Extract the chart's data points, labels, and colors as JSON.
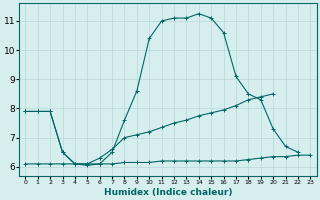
{
  "xlabel": "Humidex (Indice chaleur)",
  "bg_color": "#d7eeee",
  "line_color": "#006666",
  "grid_color": "#b8d8d8",
  "xlim": [
    -0.5,
    23.5
  ],
  "ylim": [
    5.7,
    11.6
  ],
  "yticks": [
    6,
    7,
    8,
    9,
    10,
    11
  ],
  "xticks": [
    0,
    1,
    2,
    3,
    4,
    5,
    6,
    7,
    8,
    9,
    10,
    11,
    12,
    13,
    14,
    15,
    16,
    17,
    18,
    19,
    20,
    21,
    22,
    23
  ],
  "series1_x": [
    0,
    1,
    2,
    3,
    4,
    5,
    6,
    7,
    8,
    9,
    10,
    11,
    12,
    13,
    14,
    15,
    16,
    17,
    18,
    19,
    20,
    21,
    22
  ],
  "series1_y": [
    7.9,
    7.9,
    7.9,
    6.5,
    6.1,
    6.1,
    6.1,
    6.5,
    7.6,
    8.6,
    10.4,
    11.0,
    11.1,
    11.1,
    11.25,
    11.1,
    10.6,
    9.1,
    8.5,
    8.3,
    7.3,
    6.7,
    6.5
  ],
  "series2_x": [
    0,
    1,
    2,
    3,
    4,
    5,
    6,
    7,
    8,
    9,
    10,
    11,
    12,
    13,
    14,
    15,
    16,
    17,
    18,
    19,
    20
  ],
  "series2_y": [
    7.9,
    7.9,
    7.9,
    6.5,
    6.1,
    6.1,
    6.3,
    6.6,
    7.0,
    7.1,
    7.2,
    7.35,
    7.5,
    7.6,
    7.75,
    7.85,
    7.95,
    8.1,
    8.3,
    8.4,
    8.5
  ],
  "series3_x": [
    0,
    1,
    2,
    3,
    4,
    5,
    6,
    7,
    8,
    9,
    10,
    11,
    12,
    13,
    14,
    15,
    16,
    17,
    18,
    19,
    20,
    21,
    22,
    23
  ],
  "series3_y": [
    6.1,
    6.1,
    6.1,
    6.1,
    6.1,
    6.05,
    6.1,
    6.1,
    6.15,
    6.15,
    6.15,
    6.2,
    6.2,
    6.2,
    6.2,
    6.2,
    6.2,
    6.2,
    6.25,
    6.3,
    6.35,
    6.35,
    6.4,
    6.4
  ]
}
